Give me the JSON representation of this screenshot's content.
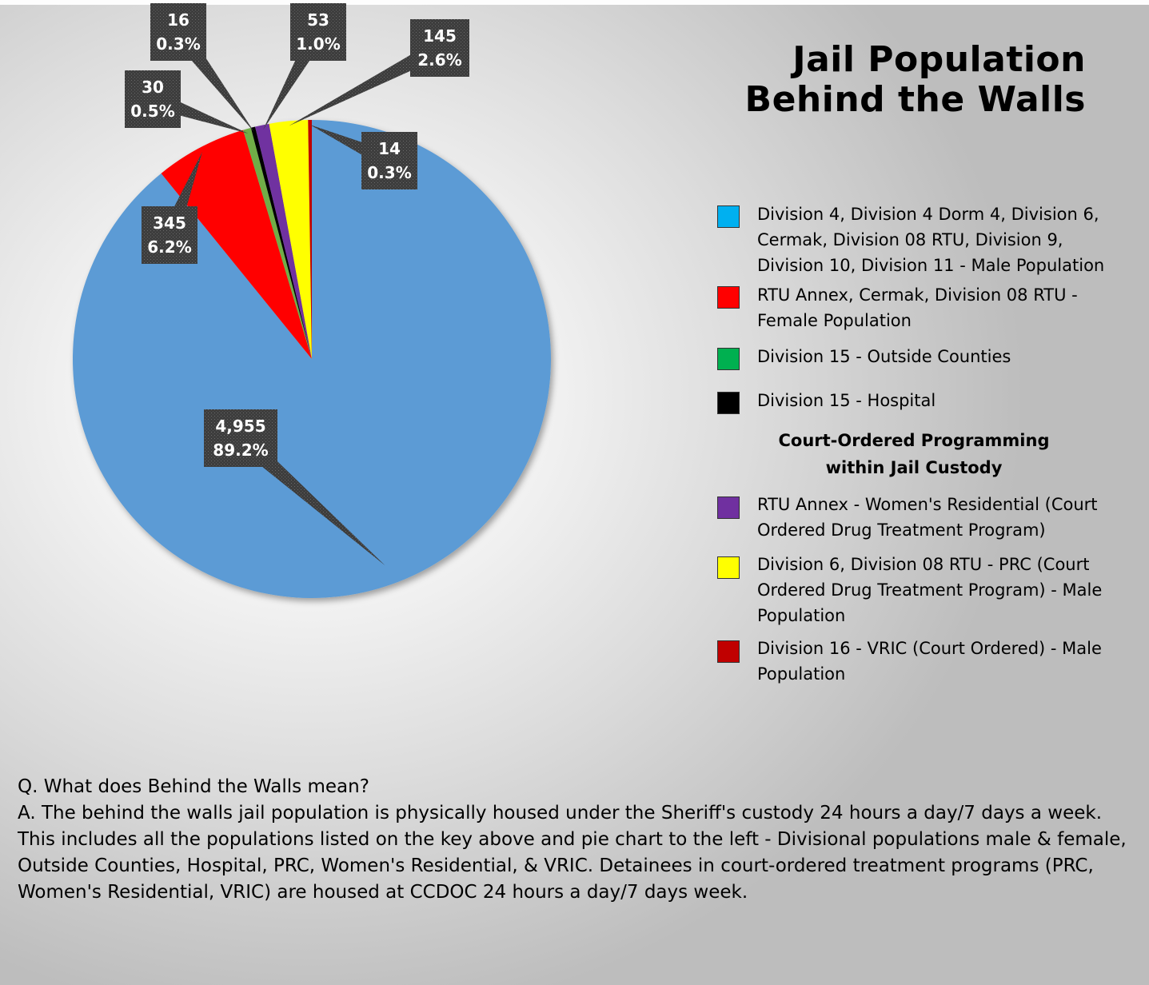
{
  "chart_data": {
    "type": "pie",
    "title": "Jail Population",
    "subtitle": "Behind the Walls",
    "slices": [
      {
        "label": "Division 4, Division 4 Dorm 4, Division 6, Cermak, Division 08 RTU, Division 9, Division 10, Division 11 - Male Population",
        "value": 4955,
        "percent": "89.2%",
        "value_label": "4,955",
        "color": "#5b9bd5",
        "legend_color": "#00b0f0"
      },
      {
        "label": "RTU Annex, Cermak, Division 08 RTU - Female Population",
        "value": 345,
        "percent": "6.2%",
        "value_label": "345",
        "color": "#ff0000",
        "legend_color": "#ff0000"
      },
      {
        "label": "Division 15 -  Outside Counties",
        "value": 30,
        "percent": "0.5%",
        "value_label": "30",
        "color": "#70ad47",
        "legend_color": "#00b050"
      },
      {
        "label": "Division 15 - Hospital",
        "value": 16,
        "percent": "0.3%",
        "value_label": "16",
        "color": "#000000",
        "legend_color": "#000000"
      },
      {
        "label": "RTU Annex - Women's Residential (Court Ordered Drug Treatment Program)",
        "value": 53,
        "percent": "1.0%",
        "value_label": "53",
        "color": "#7030a0",
        "legend_color": "#7030a0"
      },
      {
        "label": "Division 6, Division 08 RTU - PRC (Court Ordered Drug Treatment Program) - Male Population",
        "value": 145,
        "percent": "2.6%",
        "value_label": "145",
        "color": "#ffff00",
        "legend_color": "#ffff00"
      },
      {
        "label": "Division 16 - VRIC (Court Ordered) - Male Population",
        "value": 14,
        "percent": "0.3%",
        "value_label": "14",
        "color": "#c00000",
        "legend_color": "#c00000"
      }
    ],
    "legend_heading": "Court-Ordered Programming within Jail Custody",
    "legend_placement": "right"
  },
  "qa": {
    "question": "Q. What does Behind the Walls mean?",
    "answer": "A. The behind the walls jail population is physically housed under the Sheriff's custody 24 hours a day/7 days a week.  This includes all the populations listed on the key above and pie chart to the left - Divisional populations male & female, Outside Counties, Hospital, PRC, Women's Residential, & VRIC. Detainees in court-ordered treatment programs (PRC, Women's Residential, VRIC) are housed at CCDOC 24 hours a day/7 days week."
  }
}
